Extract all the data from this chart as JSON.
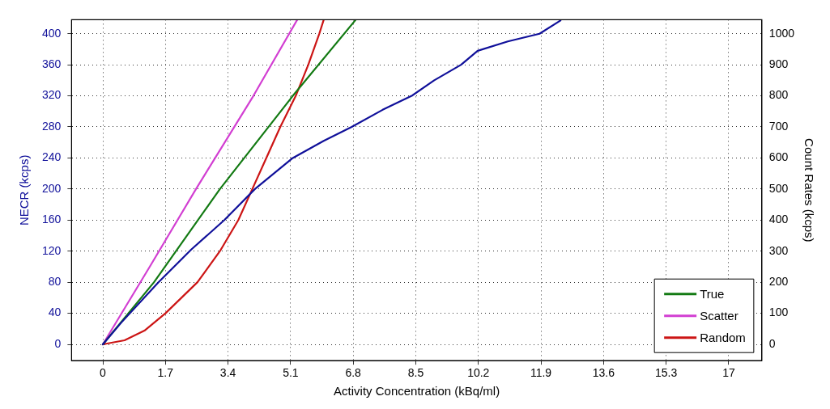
{
  "chart_data": {
    "type": "line",
    "xlabel": "Activity Concentration (kBq/ml)",
    "ylabel": "NECR (kcps)",
    "y2label": "Count Rates (kcps)",
    "xlim": [
      -0.85,
      17.9
    ],
    "xticks": [
      0,
      1.7,
      3.4,
      5.1,
      6.8,
      8.5,
      10.2,
      11.9,
      13.6,
      15.3,
      17
    ],
    "ylim": [
      -21,
      418
    ],
    "yticks": [
      0,
      40,
      80,
      120,
      160,
      200,
      240,
      280,
      320,
      360,
      400
    ],
    "y2lim": [
      -52.5,
      1045
    ],
    "y2ticks": [
      0,
      100,
      200,
      300,
      400,
      500,
      600,
      700,
      800,
      900,
      1000
    ],
    "grid": true,
    "legend": "bottom right",
    "marker": "none",
    "line_style": "solid",
    "series": [
      {
        "color": "#10109a",
        "axis": "y",
        "x": [
          0,
          0.5,
          1.51,
          2.4,
          3.3,
          4.13,
          5.16,
          6.0,
          6.76,
          7.6,
          8.39,
          9.0,
          9.73,
          10.18,
          11.0,
          11.86,
          12.43
        ],
        "values": [
          0,
          28,
          80,
          122,
          160,
          200,
          240,
          262,
          280,
          302,
          320,
          340,
          360,
          378,
          390,
          400,
          417
        ]
      },
      {
        "name": "True",
        "color": "#137a13",
        "axis": "y2",
        "x": [
          0,
          1.39,
          3.18,
          5.16,
          6.87
        ],
        "values": [
          0,
          200,
          500,
          800,
          1045
        ]
      },
      {
        "name": "Scatter",
        "color": "#d23fd2",
        "axis": "y2",
        "x": [
          0,
          1.3,
          2.53,
          4.09,
          5.28
        ],
        "values": [
          0,
          255,
          500,
          800,
          1045
        ]
      },
      {
        "name": "Random",
        "color": "#cc1515",
        "axis": "y2",
        "x": [
          0,
          0.59,
          1.13,
          1.7,
          2.57,
          3.18,
          3.68,
          4.06,
          4.44,
          4.82,
          5.24,
          5.58,
          5.88,
          6.0
        ],
        "values": [
          0,
          13,
          44,
          100,
          200,
          300,
          400,
          500,
          600,
          700,
          800,
          900,
          1000,
          1045
        ]
      }
    ]
  }
}
